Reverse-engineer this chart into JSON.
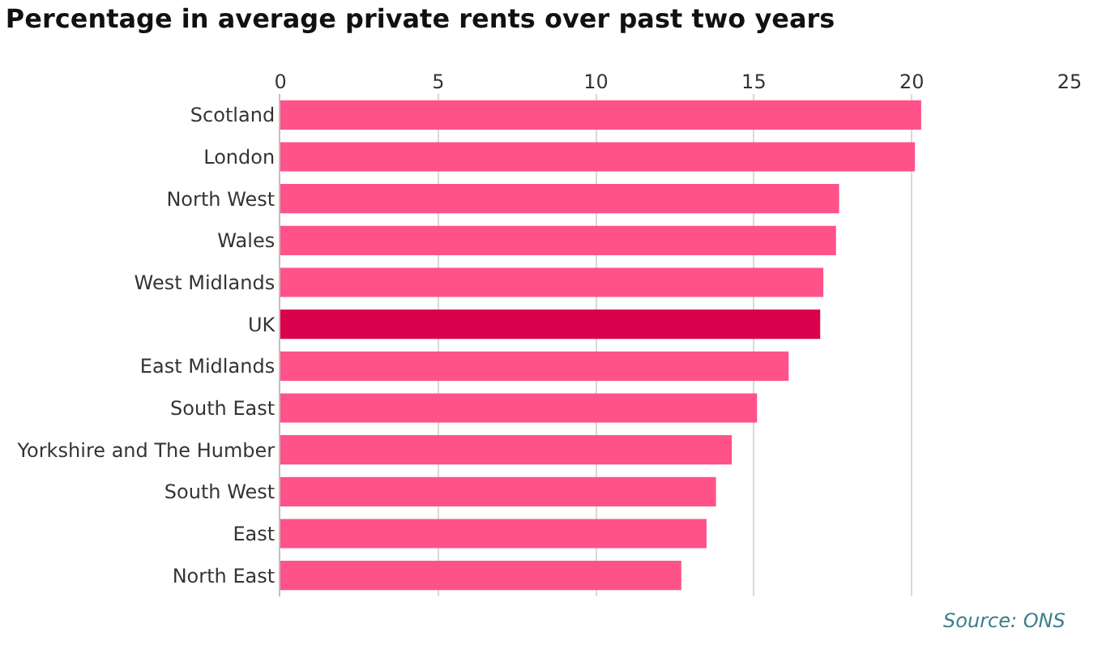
{
  "chart_data": {
    "type": "bar",
    "orientation": "horizontal",
    "title": "Percentage in average private rents over past two years",
    "categories": [
      "Scotland",
      "London",
      "North West",
      "Wales",
      "West Midlands",
      "UK",
      "East Midlands",
      "South East",
      "Yorkshire and The Humber",
      "South West",
      "East",
      "North East"
    ],
    "values": [
      20.3,
      20.1,
      17.7,
      17.6,
      17.2,
      17.1,
      16.1,
      15.1,
      14.3,
      13.8,
      13.5,
      12.7
    ],
    "colors": [
      "#ff5289",
      "#ff5289",
      "#ff5289",
      "#ff5289",
      "#ff5289",
      "#d9004c",
      "#ff5289",
      "#ff5289",
      "#ff5289",
      "#ff5289",
      "#ff5289",
      "#ff5289"
    ],
    "xlim": [
      0,
      25
    ],
    "xticks": [
      0,
      5,
      10,
      15,
      20,
      25
    ],
    "grid": "x",
    "annotations": [
      "Source: ONS"
    ]
  }
}
